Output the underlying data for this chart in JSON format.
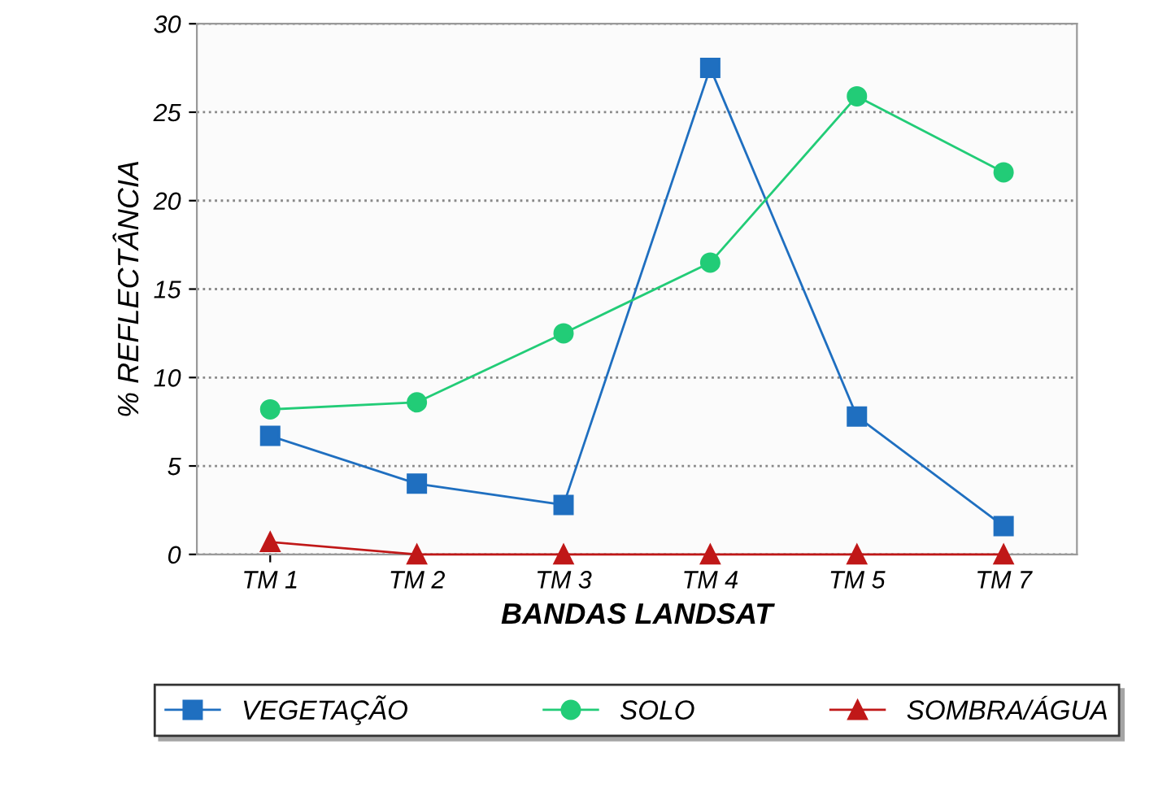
{
  "chart_data": {
    "type": "line",
    "xlabel": "BANDAS LANDSAT",
    "ylabel": "% REFLECTÂNCIA",
    "categories": [
      "TM 1",
      "TM 2",
      "TM 3",
      "TM 4",
      "TM 5",
      "TM 7"
    ],
    "series": [
      {
        "name": "VEGETAÇÃO",
        "color": "#1f6fc0",
        "marker": "square",
        "values": [
          6.7,
          4.0,
          2.8,
          27.5,
          7.8,
          1.6
        ]
      },
      {
        "name": "SOLO",
        "color": "#22cc77",
        "marker": "circle",
        "values": [
          8.2,
          8.6,
          12.5,
          16.5,
          25.9,
          21.6
        ]
      },
      {
        "name": "SOMBRA/ÁGUA",
        "color": "#c01818",
        "marker": "triangle",
        "values": [
          0.7,
          0,
          0,
          0,
          0,
          0
        ]
      }
    ],
    "ylim": [
      0,
      30
    ],
    "yticks": [
      0,
      5,
      10,
      15,
      20,
      25,
      30
    ],
    "grid": "y",
    "legend": "bottom"
  }
}
